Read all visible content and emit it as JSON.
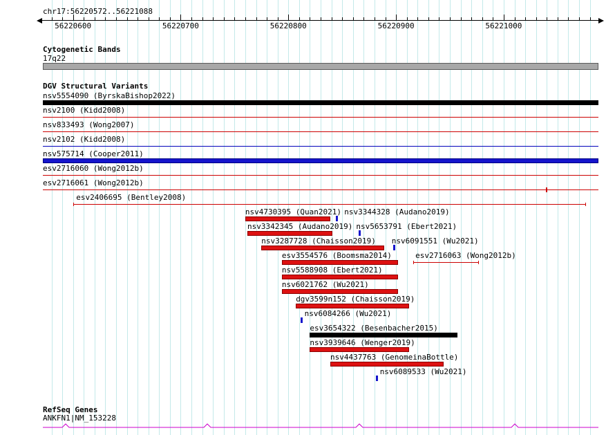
{
  "header": {
    "region_title": "chr17:56220572..56221088"
  },
  "ruler": {
    "major_ticks": [
      {
        "value": 56220600,
        "label": "56220600"
      },
      {
        "value": 56220700,
        "label": "56220700"
      },
      {
        "value": 56220800,
        "label": "56220800"
      },
      {
        "value": 56220900,
        "label": "56220900"
      },
      {
        "value": 56221000,
        "label": "56221000"
      }
    ],
    "minor_step_bp": 10
  },
  "sections": {
    "cytobands": {
      "header": "Cytogenetic Bands",
      "band_label": "17q22"
    },
    "dgv": {
      "header": "DGV Structural Variants"
    },
    "refseq": {
      "header": "RefSeq Genes",
      "gene_label": "ANKFN1|NM_153228"
    }
  },
  "colors": {
    "grid": "#c3e9e9",
    "loss": "#dd1111",
    "loss_dark": "#8b0000",
    "gain": "#1515cc",
    "gain_dark": "#000080",
    "band_fill": "#a8a8a8",
    "band_border": "#5a5a5a",
    "gene": "#cc00cc"
  },
  "chart_data": {
    "type": "genome-tracks",
    "region": {
      "chrom": "chr17",
      "start": 56220572,
      "end": 56221088
    },
    "tracks": [
      {
        "items": [
          {
            "label": "nsv5554090 (ByrskaBishop2022)",
            "glyph": "bar",
            "color": "black",
            "start": 56220572,
            "end": 56221088,
            "full": true
          }
        ]
      },
      {
        "items": [
          {
            "label": "nsv2100 (Kidd2008)",
            "glyph": "line",
            "color": "red",
            "start": 56220572,
            "end": 56221088,
            "full": true
          }
        ]
      },
      {
        "items": [
          {
            "label": "nsv833493 (Wong2007)",
            "glyph": "line",
            "color": "red",
            "start": 56220572,
            "end": 56221088,
            "full": true
          }
        ]
      },
      {
        "items": [
          {
            "label": "nsv2102 (Kidd2008)",
            "glyph": "line",
            "color": "blue",
            "start": 56220572,
            "end": 56221088,
            "full": true
          }
        ]
      },
      {
        "items": [
          {
            "label": "nsv575714 (Cooper2011)",
            "glyph": "bar",
            "color": "blue",
            "start": 56220572,
            "end": 56221088,
            "full": true
          }
        ]
      },
      {
        "items": [
          {
            "label": "esv2716060 (Wong2012b)",
            "glyph": "line",
            "color": "red",
            "start": 56220572,
            "end": 56221088,
            "full": true
          }
        ]
      },
      {
        "items": [
          {
            "label": "esv2716061 (Wong2012b)",
            "glyph": "line",
            "color": "red",
            "start": 56220572,
            "end": 56221088,
            "full": true,
            "marker": 56221039
          }
        ]
      },
      {
        "items": [
          {
            "label": "esv2406695 (Bentley2008)",
            "glyph": "line-ends",
            "color": "red",
            "start": 56220600,
            "end": 56221076,
            "label_pos": 56220603
          }
        ]
      },
      {
        "items": [
          {
            "label": "nsv4730395 (Quan2021)",
            "glyph": "bar",
            "color": "red",
            "start": 56220760,
            "end": 56220839
          },
          {
            "label": "nsv3344328 (Audano2019)",
            "glyph": "tick",
            "color": "blue",
            "pos": 56220845,
            "label_pos": 56220852
          }
        ]
      },
      {
        "items": [
          {
            "label": "nsv3342345 (Audano2019)",
            "glyph": "bar",
            "color": "red",
            "start": 56220762,
            "end": 56220841
          },
          {
            "label": "nsv5653791 (Ebert2021)",
            "glyph": "tick",
            "color": "blue",
            "pos": 56220866,
            "label_pos": 56220863
          }
        ]
      },
      {
        "items": [
          {
            "label": "nsv3287728 (Chaisson2019)",
            "glyph": "bar",
            "color": "red",
            "start": 56220775,
            "end": 56220889
          },
          {
            "label": "nsv6091551 (Wu2021)",
            "glyph": "tick",
            "color": "blue",
            "pos": 56220898,
            "label_pos": 56220896
          }
        ]
      },
      {
        "items": [
          {
            "label": "esv3554576 (Boomsma2014)",
            "glyph": "bar",
            "color": "red",
            "start": 56220794,
            "end": 56220902
          },
          {
            "label": "esv2716063 (Wong2012b)",
            "glyph": "line-ends",
            "color": "red",
            "start": 56220916,
            "end": 56220976,
            "label_pos": 56220918
          }
        ]
      },
      {
        "items": [
          {
            "label": "nsv5588908 (Ebert2021)",
            "glyph": "bar",
            "color": "red",
            "start": 56220794,
            "end": 56220902
          }
        ]
      },
      {
        "items": [
          {
            "label": "nsv6021762 (Wu2021)",
            "glyph": "bar",
            "color": "red",
            "start": 56220794,
            "end": 56220902
          }
        ]
      },
      {
        "items": [
          {
            "label": "dgv3599n152 (Chaisson2019)",
            "glyph": "bar",
            "color": "red",
            "start": 56220807,
            "end": 56220912
          }
        ]
      },
      {
        "items": [
          {
            "label": "nsv6084266 (Wu2021)",
            "glyph": "tick",
            "color": "blue",
            "pos": 56220812,
            "label_pos": 56220815
          }
        ]
      },
      {
        "items": [
          {
            "label": "esv3654322 (Besenbacher2015)",
            "glyph": "bar",
            "color": "black",
            "start": 56220820,
            "end": 56220957
          }
        ]
      },
      {
        "items": [
          {
            "label": "nsv3939646 (Wenger2019)",
            "glyph": "bar",
            "color": "red",
            "start": 56220820,
            "end": 56220912
          }
        ]
      },
      {
        "items": [
          {
            "label": "nsv4437763 (GenomeinaBottle)",
            "glyph": "bar",
            "color": "red",
            "start": 56220839,
            "end": 56220944
          }
        ]
      },
      {
        "items": [
          {
            "label": "nsv6089533 (Wu2021)",
            "glyph": "tick",
            "color": "blue",
            "pos": 56220882,
            "label_pos": 56220885
          }
        ]
      }
    ]
  }
}
